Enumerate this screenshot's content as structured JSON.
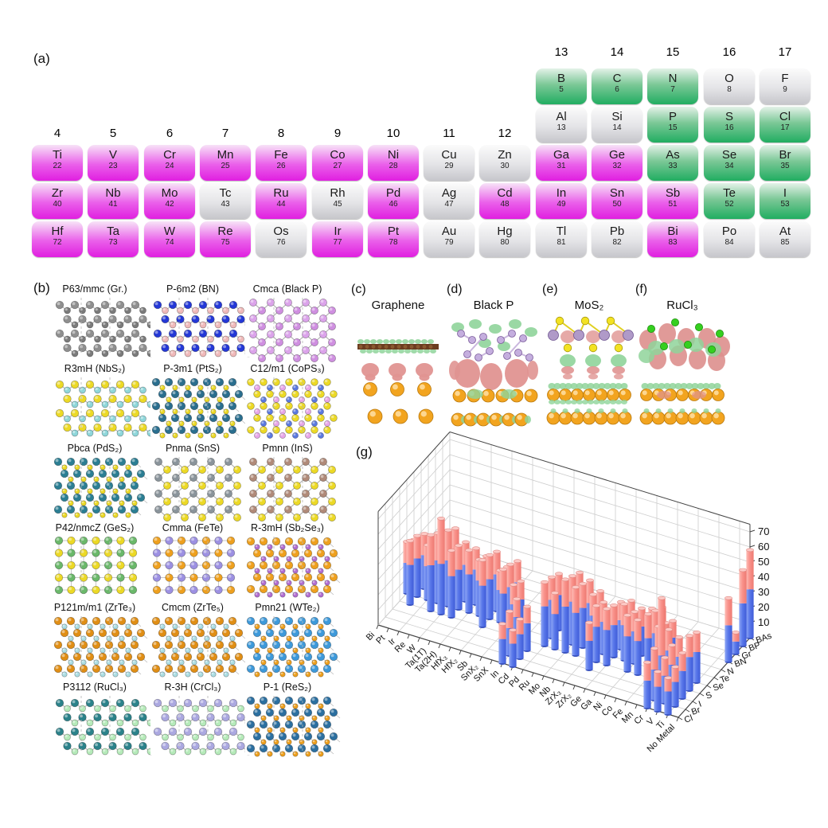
{
  "panels": {
    "a": "(a)",
    "b": "(b)",
    "g": "(g)"
  },
  "periodic_table": {
    "color_map": {
      "magenta": "#e01fe0",
      "green": "#21ad61",
      "gray": "#c6c6cb"
    },
    "top_group_headers": [
      "13",
      "14",
      "15",
      "16",
      "17"
    ],
    "mid_group_headers": [
      "4",
      "5",
      "6",
      "7",
      "8",
      "9",
      "10",
      "11",
      "12"
    ],
    "elements": [
      {
        "symbol": "B",
        "number": "5",
        "group": 13,
        "row": 0,
        "color": "green"
      },
      {
        "symbol": "C",
        "number": "6",
        "group": 14,
        "row": 0,
        "color": "green"
      },
      {
        "symbol": "N",
        "number": "7",
        "group": 15,
        "row": 0,
        "color": "green"
      },
      {
        "symbol": "O",
        "number": "8",
        "group": 16,
        "row": 0,
        "color": "gray"
      },
      {
        "symbol": "F",
        "number": "9",
        "group": 17,
        "row": 0,
        "color": "gray"
      },
      {
        "symbol": "Al",
        "number": "13",
        "group": 13,
        "row": 1,
        "color": "gray"
      },
      {
        "symbol": "Si",
        "number": "14",
        "group": 14,
        "row": 1,
        "color": "gray"
      },
      {
        "symbol": "P",
        "number": "15",
        "group": 15,
        "row": 1,
        "color": "green"
      },
      {
        "symbol": "S",
        "number": "16",
        "group": 16,
        "row": 1,
        "color": "green"
      },
      {
        "symbol": "Cl",
        "number": "17",
        "group": 17,
        "row": 1,
        "color": "green"
      },
      {
        "symbol": "Ti",
        "number": "22",
        "group": 4,
        "row": 2,
        "color": "magenta"
      },
      {
        "symbol": "V",
        "number": "23",
        "group": 5,
        "row": 2,
        "color": "magenta"
      },
      {
        "symbol": "Cr",
        "number": "24",
        "group": 6,
        "row": 2,
        "color": "magenta"
      },
      {
        "symbol": "Mn",
        "number": "25",
        "group": 7,
        "row": 2,
        "color": "magenta"
      },
      {
        "symbol": "Fe",
        "number": "26",
        "group": 8,
        "row": 2,
        "color": "magenta"
      },
      {
        "symbol": "Co",
        "number": "27",
        "group": 9,
        "row": 2,
        "color": "magenta"
      },
      {
        "symbol": "Ni",
        "number": "28",
        "group": 10,
        "row": 2,
        "color": "magenta"
      },
      {
        "symbol": "Cu",
        "number": "29",
        "group": 11,
        "row": 2,
        "color": "gray"
      },
      {
        "symbol": "Zn",
        "number": "30",
        "group": 12,
        "row": 2,
        "color": "gray"
      },
      {
        "symbol": "Ga",
        "number": "31",
        "group": 13,
        "row": 2,
        "color": "magenta"
      },
      {
        "symbol": "Ge",
        "number": "32",
        "group": 14,
        "row": 2,
        "color": "magenta"
      },
      {
        "symbol": "As",
        "number": "33",
        "group": 15,
        "row": 2,
        "color": "green"
      },
      {
        "symbol": "Se",
        "number": "34",
        "group": 16,
        "row": 2,
        "color": "green"
      },
      {
        "symbol": "Br",
        "number": "35",
        "group": 17,
        "row": 2,
        "color": "green"
      },
      {
        "symbol": "Zr",
        "number": "40",
        "group": 4,
        "row": 3,
        "color": "magenta"
      },
      {
        "symbol": "Nb",
        "number": "41",
        "group": 5,
        "row": 3,
        "color": "magenta"
      },
      {
        "symbol": "Mo",
        "number": "42",
        "group": 6,
        "row": 3,
        "color": "magenta"
      },
      {
        "symbol": "Tc",
        "number": "43",
        "group": 7,
        "row": 3,
        "color": "gray"
      },
      {
        "symbol": "Ru",
        "number": "44",
        "group": 8,
        "row": 3,
        "color": "magenta"
      },
      {
        "symbol": "Rh",
        "number": "45",
        "group": 9,
        "row": 3,
        "color": "gray"
      },
      {
        "symbol": "Pd",
        "number": "46",
        "group": 10,
        "row": 3,
        "color": "magenta"
      },
      {
        "symbol": "Ag",
        "number": "47",
        "group": 11,
        "row": 3,
        "color": "gray"
      },
      {
        "symbol": "Cd",
        "number": "48",
        "group": 12,
        "row": 3,
        "color": "magenta"
      },
      {
        "symbol": "In",
        "number": "49",
        "group": 13,
        "row": 3,
        "color": "magenta"
      },
      {
        "symbol": "Sn",
        "number": "50",
        "group": 14,
        "row": 3,
        "color": "magenta"
      },
      {
        "symbol": "Sb",
        "number": "51",
        "group": 15,
        "row": 3,
        "color": "magenta"
      },
      {
        "symbol": "Te",
        "number": "52",
        "group": 16,
        "row": 3,
        "color": "green"
      },
      {
        "symbol": "I",
        "number": "53",
        "group": 17,
        "row": 3,
        "color": "green"
      },
      {
        "symbol": "Hf",
        "number": "72",
        "group": 4,
        "row": 4,
        "color": "magenta"
      },
      {
        "symbol": "Ta",
        "number": "73",
        "group": 5,
        "row": 4,
        "color": "magenta"
      },
      {
        "symbol": "W",
        "number": "74",
        "group": 6,
        "row": 4,
        "color": "magenta"
      },
      {
        "symbol": "Re",
        "number": "75",
        "group": 7,
        "row": 4,
        "color": "magenta"
      },
      {
        "symbol": "Os",
        "number": "76",
        "group": 8,
        "row": 4,
        "color": "gray"
      },
      {
        "symbol": "Ir",
        "number": "77",
        "group": 9,
        "row": 4,
        "color": "magenta"
      },
      {
        "symbol": "Pt",
        "number": "78",
        "group": 10,
        "row": 4,
        "color": "magenta"
      },
      {
        "symbol": "Au",
        "number": "79",
        "group": 11,
        "row": 4,
        "color": "gray"
      },
      {
        "symbol": "Hg",
        "number": "80",
        "group": 12,
        "row": 4,
        "color": "gray"
      },
      {
        "symbol": "Tl",
        "number": "81",
        "group": 13,
        "row": 4,
        "color": "gray"
      },
      {
        "symbol": "Pb",
        "number": "82",
        "group": 14,
        "row": 4,
        "color": "gray"
      },
      {
        "symbol": "Bi",
        "number": "83",
        "group": 15,
        "row": 4,
        "color": "magenta"
      },
      {
        "symbol": "Po",
        "number": "84",
        "group": 16,
        "row": 4,
        "color": "gray"
      },
      {
        "symbol": "At",
        "number": "85",
        "group": 17,
        "row": 4,
        "color": "gray"
      }
    ]
  },
  "structures": {
    "tiles": [
      {
        "label": "P63/mmc (Gr.)",
        "pattern": "honeycomb",
        "colors": [
          "#8f8f8f",
          "#7b7b7b"
        ]
      },
      {
        "label": "P-6m2 (BN)",
        "pattern": "honeycomb",
        "colors": [
          "#2438d6",
          "#efb9b9"
        ]
      },
      {
        "label": "Cmca (Black P)",
        "pattern": "diamond",
        "colors": [
          "#dba3ea",
          "#cf8fe0"
        ]
      },
      {
        "label": "R3mH (NbS₂)",
        "pattern": "honeycomb",
        "colors": [
          "#ecd926",
          "#8ed6da"
        ]
      },
      {
        "label": "P-3m1 (PtS₂)",
        "pattern": "tri",
        "colors": [
          "#2a6e8e",
          "#ecd926"
        ]
      },
      {
        "label": "C12/m1 (CoPS₃)",
        "pattern": "tri3",
        "colors": [
          "#ecd926",
          "#5b79e0",
          "#e7a6e9"
        ]
      },
      {
        "label": "Pbca (PdS₂)",
        "pattern": "tri",
        "colors": [
          "#2b7e93",
          "#ecd926"
        ]
      },
      {
        "label": "Pnma (SnS)",
        "pattern": "diamond",
        "colors": [
          "#8a949b",
          "#ecd926"
        ]
      },
      {
        "label": "Pmnn (InS)",
        "pattern": "diamond",
        "colors": [
          "#b08a79",
          "#ecd926"
        ]
      },
      {
        "label": "P42/nmcZ (GeS₂)",
        "pattern": "checker",
        "colors": [
          "#6ab86a",
          "#ecd926"
        ]
      },
      {
        "label": "Cmma (FeTe)",
        "pattern": "checker",
        "colors": [
          "#eea01e",
          "#9c90e2"
        ]
      },
      {
        "label": "R-3mH (Sb₂Se₃)",
        "pattern": "tri",
        "colors": [
          "#eea01e",
          "#b16ed2"
        ]
      },
      {
        "label": "P121m/m1 (ZrTe₃)",
        "pattern": "tri",
        "colors": [
          "#e08e15",
          "#abdde3"
        ]
      },
      {
        "label": "Cmcm (ZrTe₅)",
        "pattern": "tri",
        "colors": [
          "#e08e15",
          "#abdde3"
        ]
      },
      {
        "label": "Pmn21 (WTe₂)",
        "pattern": "tri",
        "colors": [
          "#3d99da",
          "#eea01e"
        ]
      },
      {
        "label": "P3112 (RuCl₃)",
        "pattern": "honeycomb",
        "colors": [
          "#2b828a",
          "#b5eab9"
        ]
      },
      {
        "label": "R-3H (CrCl₃)",
        "pattern": "honeycomb",
        "colors": [
          "#aba8e0",
          "#b5eab9"
        ]
      },
      {
        "label": "P-1 (ReS₂)",
        "pattern": "tri",
        "colors": [
          "#2b6fa0",
          "#eea01e"
        ]
      }
    ]
  },
  "charge_panels": [
    {
      "marker": "(c)",
      "title": "Graphene",
      "art": "graphene"
    },
    {
      "marker": "(d)",
      "title": "Black P",
      "art": "blackp"
    },
    {
      "marker": "(e)",
      "title": "MoS₂",
      "art": "mos2"
    },
    {
      "marker": "(f)",
      "title": "RuCl₃",
      "art": "rucl3"
    }
  ],
  "chart_data": {
    "type": "bar",
    "subtype": "3d-stacked-cylinders",
    "title": "",
    "metals_axis": [
      "Bi",
      "Pt",
      "Ir",
      "Re",
      "W",
      "Ta(1T)",
      "Ta(2H)",
      "HfX₃",
      "HfX₂",
      "Sb",
      "SnX₂",
      "SnX",
      "In",
      "Cd",
      "Pd",
      "Ru",
      "Mo",
      "Nb",
      "ZrX₃",
      "ZrX₂",
      "Ge",
      "Ga",
      "Ni",
      "Co",
      "Fe",
      "Mn",
      "Cr",
      "V",
      "Ti",
      "No Metal"
    ],
    "families_axis_front_to_back": [
      "Cl",
      "Br",
      "I",
      "S",
      "Se",
      "Te",
      "N",
      "BN",
      "Gr",
      "BP",
      "BAs"
    ],
    "z_ticks": [
      10,
      20,
      30,
      40,
      50,
      60,
      70
    ],
    "zlim": [
      0,
      75
    ],
    "grid": true,
    "bar_colors": {
      "bottom_segment": "#5c7cf0",
      "top_segment": "#fa938d"
    },
    "bars_format": "[metal_index, family_index, bottom_value, top_value]",
    "bars": [
      [
        0,
        5,
        18,
        12
      ],
      [
        0,
        4,
        20,
        14
      ],
      [
        1,
        5,
        22,
        14
      ],
      [
        1,
        4,
        25,
        15
      ],
      [
        1,
        3,
        26,
        16
      ],
      [
        2,
        5,
        20,
        13
      ],
      [
        2,
        4,
        22,
        14
      ],
      [
        3,
        5,
        26,
        16
      ],
      [
        3,
        4,
        28,
        18
      ],
      [
        3,
        3,
        30,
        20
      ],
      [
        4,
        5,
        28,
        18
      ],
      [
        4,
        4,
        30,
        20
      ],
      [
        4,
        3,
        33,
        30
      ],
      [
        5,
        5,
        24,
        15
      ],
      [
        5,
        4,
        26,
        16
      ],
      [
        5,
        3,
        27,
        17
      ],
      [
        6,
        5,
        23,
        14
      ],
      [
        6,
        4,
        25,
        16
      ],
      [
        7,
        5,
        21,
        13
      ],
      [
        7,
        4,
        23,
        14
      ],
      [
        8,
        5,
        24,
        15
      ],
      [
        8,
        4,
        26,
        16
      ],
      [
        8,
        3,
        27,
        17
      ],
      [
        9,
        5,
        19,
        12
      ],
      [
        9,
        4,
        21,
        13
      ],
      [
        10,
        5,
        23,
        14
      ],
      [
        10,
        4,
        25,
        15
      ],
      [
        10,
        3,
        26,
        16
      ],
      [
        11,
        4,
        19,
        12
      ],
      [
        11,
        3,
        21,
        13
      ],
      [
        12,
        2,
        20,
        12
      ],
      [
        12,
        1,
        18,
        11
      ],
      [
        12,
        0,
        16,
        10
      ],
      [
        13,
        2,
        18,
        11
      ],
      [
        13,
        1,
        16,
        10
      ],
      [
        13,
        0,
        15,
        9
      ],
      [
        14,
        5,
        23,
        14
      ],
      [
        14,
        4,
        25,
        15
      ],
      [
        14,
        3,
        26,
        16
      ],
      [
        15,
        5,
        21,
        13
      ],
      [
        15,
        3,
        23,
        14
      ],
      [
        16,
        5,
        26,
        16
      ],
      [
        16,
        4,
        28,
        17
      ],
      [
        16,
        3,
        30,
        18
      ],
      [
        17,
        5,
        24,
        15
      ],
      [
        17,
        4,
        26,
        16
      ],
      [
        17,
        3,
        28,
        17
      ],
      [
        18,
        5,
        21,
        13
      ],
      [
        18,
        4,
        23,
        14
      ],
      [
        19,
        4,
        21,
        13
      ],
      [
        19,
        3,
        23,
        14
      ],
      [
        19,
        2,
        19,
        12
      ],
      [
        20,
        5,
        19,
        12
      ],
      [
        20,
        4,
        21,
        13
      ],
      [
        20,
        3,
        23,
        14
      ],
      [
        21,
        5,
        21,
        13
      ],
      [
        21,
        4,
        23,
        14
      ],
      [
        22,
        5,
        19,
        12
      ],
      [
        22,
        4,
        21,
        13
      ],
      [
        22,
        3,
        23,
        14
      ],
      [
        23,
        5,
        20,
        13
      ],
      [
        23,
        3,
        22,
        14
      ],
      [
        24,
        5,
        22,
        14
      ],
      [
        24,
        4,
        24,
        15
      ],
      [
        24,
        3,
        26,
        16
      ],
      [
        25,
        5,
        18,
        11
      ],
      [
        25,
        4,
        20,
        13
      ],
      [
        25,
        3,
        22,
        14
      ],
      [
        26,
        3,
        22,
        14
      ],
      [
        26,
        2,
        24,
        38
      ],
      [
        26,
        1,
        20,
        14
      ],
      [
        26,
        0,
        18,
        12
      ],
      [
        27,
        3,
        20,
        13
      ],
      [
        27,
        2,
        20,
        13
      ],
      [
        27,
        1,
        18,
        12
      ],
      [
        27,
        0,
        16,
        10
      ],
      [
        28,
        4,
        20,
        13
      ],
      [
        28,
        3,
        22,
        14
      ],
      [
        28,
        2,
        18,
        12
      ],
      [
        28,
        1,
        16,
        10
      ],
      [
        28,
        0,
        15,
        9
      ],
      [
        29,
        10,
        32,
        26
      ],
      [
        29,
        9,
        28,
        22
      ],
      [
        29,
        8,
        8,
        6
      ],
      [
        29,
        7,
        24,
        18
      ]
    ]
  }
}
